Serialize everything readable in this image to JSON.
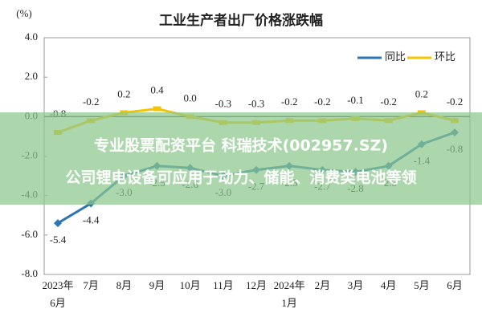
{
  "chart_data": {
    "type": "line",
    "title": "工业生产者出厂价格涨跌幅",
    "y_unit": "(%)",
    "categories": [
      "2023年\n6月",
      "7月",
      "8月",
      "9月",
      "10月",
      "11月",
      "12月",
      "2024年\n1月",
      "2月",
      "3月",
      "4月",
      "5月",
      "6月"
    ],
    "series": [
      {
        "name": "同比",
        "color": "#2e75b6",
        "values": [
          -5.4,
          -4.4,
          -3.0,
          -2.5,
          -2.6,
          -3.0,
          -2.7,
          -2.5,
          -2.7,
          -2.8,
          -2.5,
          -1.4,
          -0.8
        ],
        "value_labels": [
          "-5.4",
          "-4.4",
          "-3.0",
          "-2.5",
          "-2.6",
          "-3.0",
          "-2.7",
          "-2.5",
          "-2.7",
          "-2.8",
          "-2.5",
          "-1.4",
          "-0.8"
        ]
      },
      {
        "name": "环比",
        "color": "#f5c400",
        "values": [
          -0.8,
          -0.2,
          0.2,
          0.4,
          0.0,
          -0.3,
          -0.3,
          -0.2,
          -0.2,
          -0.1,
          -0.2,
          0.2,
          -0.2
        ],
        "value_labels": [
          "-0.8",
          "-0.2",
          "0.2",
          "0.4",
          "0.0",
          "-0.3",
          "-0.3",
          "-0.2",
          "-0.2",
          "-0.1",
          "-0.2",
          "0.2",
          "-0.2"
        ]
      }
    ],
    "ylim": [
      -8,
      4
    ],
    "yticks": [
      {
        "value": 4,
        "label": "4.0"
      },
      {
        "value": 2,
        "label": "2.0"
      },
      {
        "value": 0,
        "label": "0.0"
      },
      {
        "value": -2,
        "label": "-2.0"
      },
      {
        "value": -4,
        "label": "-4.0"
      },
      {
        "value": -6,
        "label": "-6.0"
      },
      {
        "value": -8,
        "label": "-8.0"
      }
    ],
    "grid": false,
    "legend": "top-right"
  },
  "overlay": {
    "line1": "专业股票配资平台  科瑞技术(002957.SZ)",
    "line2": "公司锂电设备可应用于动力、储能、消费类电池等领"
  }
}
